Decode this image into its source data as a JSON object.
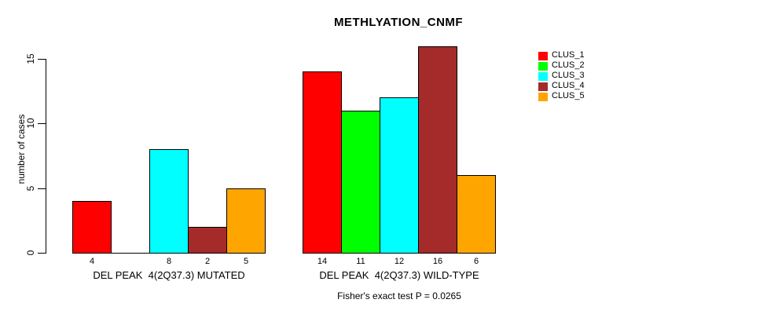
{
  "chart_data": {
    "type": "bar",
    "title": "METHLYATION_CNMF",
    "ylabel": "number of cases",
    "y_ticks": [
      0,
      5,
      10,
      15
    ],
    "y_axis_max": 15,
    "grid": false,
    "legend_position": "right",
    "groups": [
      {
        "label": "DEL PEAK  4(2Q37.3) MUTATED",
        "values": [
          4,
          0,
          8,
          2,
          5
        ],
        "bar_labels": [
          "4",
          "",
          "8",
          "2",
          "5"
        ]
      },
      {
        "label": "DEL PEAK  4(2Q37.3) WILD-TYPE",
        "values": [
          14,
          11,
          12,
          16,
          6
        ],
        "bar_labels": [
          "14",
          "11",
          "12",
          "16",
          "6"
        ]
      }
    ],
    "legend": [
      {
        "label": "CLUS_1",
        "color": "#FF0000"
      },
      {
        "label": "CLUS_2",
        "color": "#00FF00"
      },
      {
        "label": "CLUS_3",
        "color": "#00FFFF"
      },
      {
        "label": "CLUS_4",
        "color": "#A52A2A"
      },
      {
        "label": "CLUS_5",
        "color": "#FFA500"
      }
    ],
    "footnote": "Fisher's exact test P = 0.0265",
    "axis_color": "#000000",
    "background": "#FFFFFF"
  }
}
